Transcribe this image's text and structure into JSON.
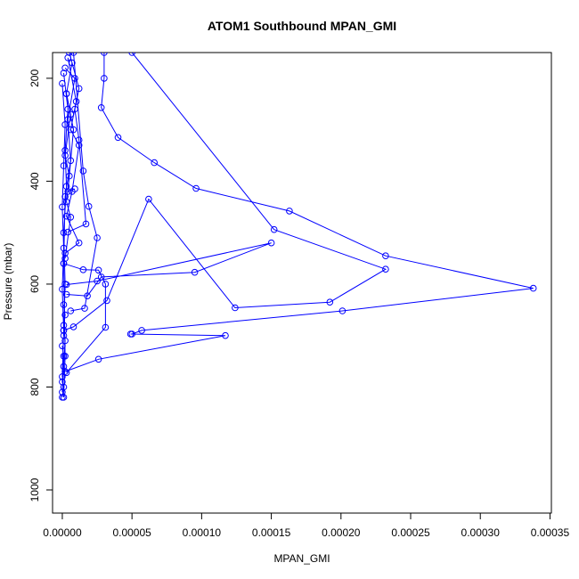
{
  "chart_data": {
    "type": "scatter",
    "title": "ATOM1 Southbound MPAN_GMI",
    "xlabel": "MPAN_GMI",
    "ylabel": "Pressure (mbar)",
    "xlim": [
      -7e-06,
      0.000351
    ],
    "ylim": [
      1045,
      150
    ],
    "y_reversed": true,
    "grid": false,
    "color": "#0000ff",
    "x_ticks": [
      {
        "value": 0.0,
        "label": "0.00000"
      },
      {
        "value": 5e-05,
        "label": "0.00005"
      },
      {
        "value": 0.0001,
        "label": "0.00010"
      },
      {
        "value": 0.00015,
        "label": "0.00015"
      },
      {
        "value": 0.0002,
        "label": "0.00020"
      },
      {
        "value": 0.00025,
        "label": "0.00025"
      },
      {
        "value": 0.0003,
        "label": "0.00030"
      },
      {
        "value": 0.00035,
        "label": "0.00035"
      }
    ],
    "y_ticks": [
      {
        "value": 200,
        "label": "200"
      },
      {
        "value": 400,
        "label": "400"
      },
      {
        "value": 600,
        "label": "600"
      },
      {
        "value": 800,
        "label": "800"
      },
      {
        "value": 1000,
        "label": "1000"
      }
    ],
    "series": [
      {
        "x": [
          3e-05,
          3e-05,
          2.8e-05,
          4e-05,
          6.6e-05,
          9.6e-05,
          0.000163,
          0.000232,
          0.000338,
          0.000201,
          5.7e-05,
          5e-05,
          4.9e-05,
          0.000117,
          2.6e-05,
          2e-06
        ],
        "y": [
          150,
          200,
          257,
          315,
          364,
          414,
          458,
          545,
          608,
          652,
          690,
          697,
          697,
          700,
          746,
          770
        ]
      },
      {
        "x": [
          5e-05,
          0.000152,
          0.000232,
          0.000192,
          0.000124,
          6.2e-05,
          3.2e-05,
          8e-06,
          1e-06
        ],
        "y": [
          150,
          494,
          571,
          635,
          646,
          435,
          632,
          683,
          690
        ]
      },
      {
        "x": [
          1e-06,
          1.5e-05,
          2.6e-05,
          3.1e-05,
          3.1e-05,
          3e-06
        ],
        "y": [
          560,
          572,
          573,
          600,
          684,
          772
        ]
      },
      {
        "x": [
          3e-06,
          1.8e-05,
          2.8e-05,
          9.5e-05,
          0.00015,
          2.5e-05,
          3e-06
        ],
        "y": [
          620,
          623,
          586,
          577,
          520,
          594,
          601
        ]
      },
      {
        "x": [
          8e-06,
          1.5e-05,
          1.9e-05,
          2.5e-05,
          1.6e-05,
          6e-06
        ],
        "y": [
          150,
          380,
          449,
          510,
          647,
          652
        ]
      },
      {
        "x": [
          5e-06,
          1.2e-05,
          9e-06,
          1.2e-05,
          1.7e-05,
          4e-06
        ],
        "y": [
          150,
          220,
          260,
          320,
          483,
          499
        ]
      },
      {
        "x": [
          4e-06,
          1e-05,
          6e-06,
          1.2e-05,
          7e-06,
          3e-06,
          1.2e-05,
          2e-06
        ],
        "y": [
          160,
          245,
          300,
          330,
          420,
          468,
          520,
          540
        ]
      },
      {
        "x": [
          2e-06,
          9e-06,
          4e-06,
          6e-06,
          2e-06,
          1e-06,
          2e-06,
          1e-06
        ],
        "y": [
          180,
          200,
          280,
          360,
          430,
          560,
          740,
          820
        ]
      },
      {
        "x": [
          1e-06,
          4e-06,
          2e-06,
          3e-06,
          1e-06,
          2e-06,
          1e-06
        ],
        "y": [
          190,
          260,
          340,
          410,
          500,
          600,
          700
        ]
      },
      {
        "x": [
          0.0,
          2e-06,
          1e-06,
          0.0,
          1e-06,
          0.0,
          1e-06,
          0.0
        ],
        "y": [
          210,
          290,
          370,
          450,
          530,
          610,
          690,
          780
        ]
      },
      {
        "x": [
          3e-06,
          6e-06,
          2e-06,
          5e-06,
          3e-06,
          6e-06,
          2e-06
        ],
        "y": [
          230,
          270,
          350,
          390,
          440,
          470,
          550
        ]
      },
      {
        "x": [
          7e-06,
          3e-06,
          8e-06,
          4e-06,
          9e-06
        ],
        "y": [
          170,
          230,
          300,
          420,
          415
        ]
      },
      {
        "x": [
          1e-06,
          2e-06,
          1e-06,
          2e-06,
          1e-06,
          0.0
        ],
        "y": [
          640,
          660,
          680,
          710,
          760,
          810
        ]
      },
      {
        "x": [
          0.0,
          1e-06,
          0.0,
          1e-06,
          0.0
        ],
        "y": [
          720,
          740,
          790,
          800,
          820
        ]
      }
    ]
  }
}
